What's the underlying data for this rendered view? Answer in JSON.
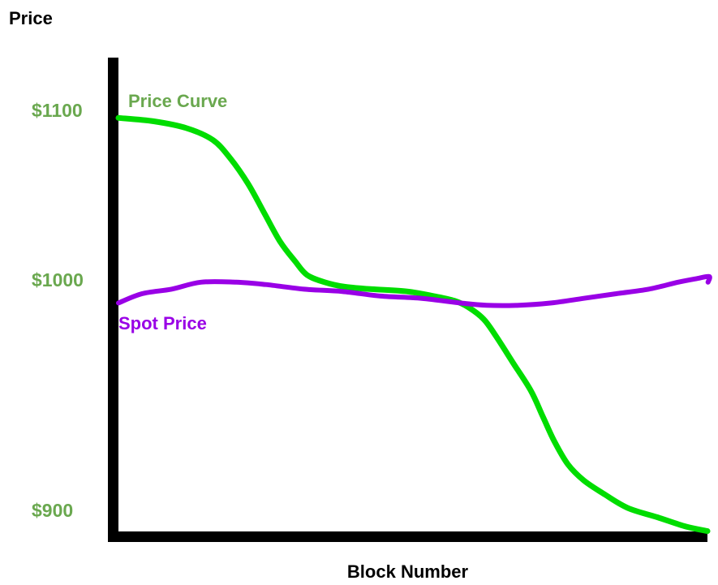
{
  "title": "Price",
  "colors": {
    "background": "#ffffff",
    "axis": "#000000",
    "tick_label_green": "#6aa84f",
    "price_curve_green": "#00dd00",
    "spot_price_purple": "#9900e6",
    "title_text": "#000000"
  },
  "chart_data": {
    "type": "line",
    "title": "Price",
    "xlabel": "Block Number",
    "ylabel": "Price",
    "x_tick_labels": [],
    "y_tick_labels": [
      "$1100",
      "$1000",
      "$900"
    ],
    "y_tick_values": [
      1100,
      1000,
      900
    ],
    "ylim": [
      880,
      1120
    ],
    "grid": false,
    "legend_position": "inline-labels-on-chart",
    "series": [
      {
        "name": "Price Curve",
        "label_color": "#6aa84f",
        "line_color": "#00dd00",
        "points": [
          [
            0,
            1096
          ],
          [
            6,
            1094
          ],
          [
            11.5,
            1090
          ],
          [
            16,
            1083
          ],
          [
            19,
            1072
          ],
          [
            22,
            1057
          ],
          [
            24.7,
            1040
          ],
          [
            27.4,
            1023
          ],
          [
            30,
            1011
          ],
          [
            32,
            1003
          ],
          [
            35,
            999
          ],
          [
            38.5,
            997
          ],
          [
            43,
            996
          ],
          [
            49,
            995
          ],
          [
            53.5,
            993
          ],
          [
            57,
            991
          ],
          [
            59.5,
            988
          ],
          [
            62,
            983
          ],
          [
            64,
            976
          ],
          [
            67,
            964
          ],
          [
            70,
            952
          ],
          [
            72,
            941
          ],
          [
            74,
            930
          ],
          [
            76.3,
            920
          ],
          [
            79,
            913
          ],
          [
            82.5,
            907
          ],
          [
            86.5,
            901
          ],
          [
            91.5,
            897
          ],
          [
            96.3,
            893
          ],
          [
            100,
            891
          ]
        ]
      },
      {
        "name": "Spot Price",
        "label_color": "#9900e6",
        "line_color": "#9900e6",
        "points": [
          [
            0,
            990
          ],
          [
            4,
            994
          ],
          [
            9,
            996
          ],
          [
            14,
            999
          ],
          [
            20,
            999
          ],
          [
            25,
            998
          ],
          [
            31.5,
            996
          ],
          [
            38,
            995
          ],
          [
            44.5,
            993
          ],
          [
            51.5,
            992
          ],
          [
            58,
            990
          ],
          [
            62.5,
            989
          ],
          [
            68,
            989
          ],
          [
            73.5,
            990
          ],
          [
            79,
            992
          ],
          [
            84.5,
            994
          ],
          [
            90,
            996
          ],
          [
            95,
            999
          ],
          [
            98.5,
            1001
          ],
          [
            100.3,
            1002
          ],
          [
            100.1,
            999
          ]
        ]
      }
    ]
  }
}
